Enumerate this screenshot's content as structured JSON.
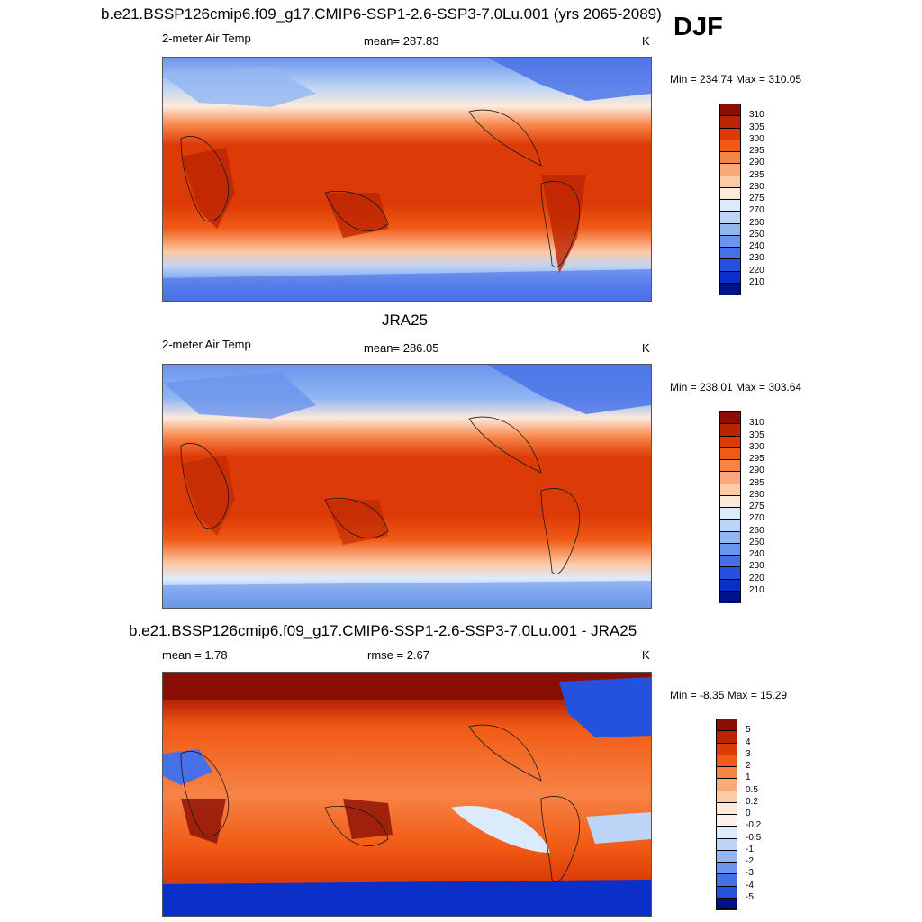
{
  "header": {
    "case_title": "b.e21.BSSP126cmip6.f09_g17.CMIP6-SSP1-2.6-SSP3-7.0Lu.001 (yrs 2065-2089)",
    "season": "DJF"
  },
  "panels": [
    {
      "title": "",
      "left_label": "2-meter Air Temp",
      "center_label": "mean= 287.83",
      "units": "K",
      "minmax": "Min = 234.74 Max = 310.05",
      "colorbar": {
        "labels": [
          "310",
          "305",
          "300",
          "295",
          "290",
          "285",
          "280",
          "275",
          "270",
          "260",
          "250",
          "240",
          "230",
          "220",
          "210"
        ],
        "colors": [
          "#8b0e04",
          "#bb2403",
          "#dc3a07",
          "#f05a14",
          "#f78346",
          "#fba87a",
          "#fdcaa8",
          "#fdeadb",
          "#dcebfb",
          "#bcd4f6",
          "#92b6f2",
          "#6c95ec",
          "#4770e7",
          "#2452de",
          "#0b2fc9",
          "#00118a"
        ]
      }
    },
    {
      "title": "JRA25",
      "left_label": "2-meter Air Temp",
      "center_label": "mean= 286.05",
      "units": "K",
      "minmax": "Min = 238.01 Max = 303.64",
      "colorbar": {
        "labels": [
          "310",
          "305",
          "300",
          "295",
          "290",
          "285",
          "280",
          "275",
          "270",
          "260",
          "250",
          "240",
          "230",
          "220",
          "210"
        ],
        "colors": [
          "#8b0e04",
          "#bb2403",
          "#dc3a07",
          "#f05a14",
          "#f78346",
          "#fba87a",
          "#fdcaa8",
          "#fdeadb",
          "#dcebfb",
          "#bcd4f6",
          "#92b6f2",
          "#6c95ec",
          "#4770e7",
          "#2452de",
          "#0b2fc9",
          "#00118a"
        ]
      }
    },
    {
      "title": "b.e21.BSSP126cmip6.f09_g17.CMIP6-SSP1-2.6-SSP3-7.0Lu.001 - JRA25",
      "left_label": "mean =   1.78",
      "center_label": "rmse =   2.67",
      "units": "K",
      "minmax": "Min =  -8.35 Max =  15.29",
      "colorbar": {
        "labels": [
          "5",
          "4",
          "3",
          "2",
          "1",
          "0.5",
          "0.2",
          "0",
          "-0.2",
          "-0.5",
          "-1",
          "-2",
          "-3",
          "-4",
          "-5"
        ],
        "colors": [
          "#8b0e04",
          "#bb2403",
          "#dc3a07",
          "#f05a14",
          "#f78346",
          "#fba87a",
          "#fdcaa8",
          "#fdeadb",
          "#fdf2ea",
          "#dcebfb",
          "#bcd4f6",
          "#92b6f2",
          "#6c95ec",
          "#4770e7",
          "#2452de",
          "#00118a"
        ]
      }
    }
  ]
}
